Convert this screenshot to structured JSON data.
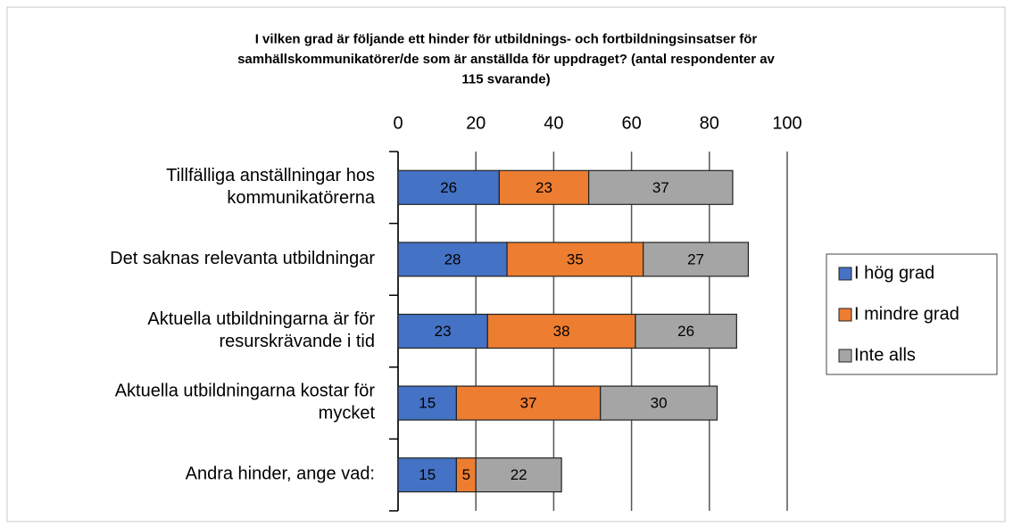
{
  "chart_data": {
    "type": "stacked_bar_horizontal",
    "title": "I vilken grad är följande ett hinder för utbildnings- och fortbildningsinsatser för\nsamhällskommunikatörer/de som är anställda för uppdraget? (antal respondenter av\n115 svarande)",
    "categories": [
      "Tillfälliga anställningar hos\nkommunikatörerna",
      "Det saknas relevanta utbildningar",
      "Aktuella utbildningarna är för\nresurskrävande i tid",
      "Aktuella utbildningarna kostar för\nmycket",
      "Andra hinder, ange vad:"
    ],
    "series": [
      {
        "name": "I hög grad",
        "color": "#4472c4",
        "values": [
          26,
          28,
          23,
          15,
          15
        ]
      },
      {
        "name": "I mindre grad",
        "color": "#ed7d31",
        "values": [
          23,
          35,
          38,
          37,
          5
        ]
      },
      {
        "name": "Inte alls",
        "color": "#a5a5a5",
        "values": [
          37,
          27,
          26,
          30,
          22
        ]
      }
    ],
    "xlim": [
      0,
      100
    ],
    "xticks": [
      0,
      20,
      40,
      60,
      80,
      100
    ],
    "grid": true,
    "legend": "right"
  }
}
